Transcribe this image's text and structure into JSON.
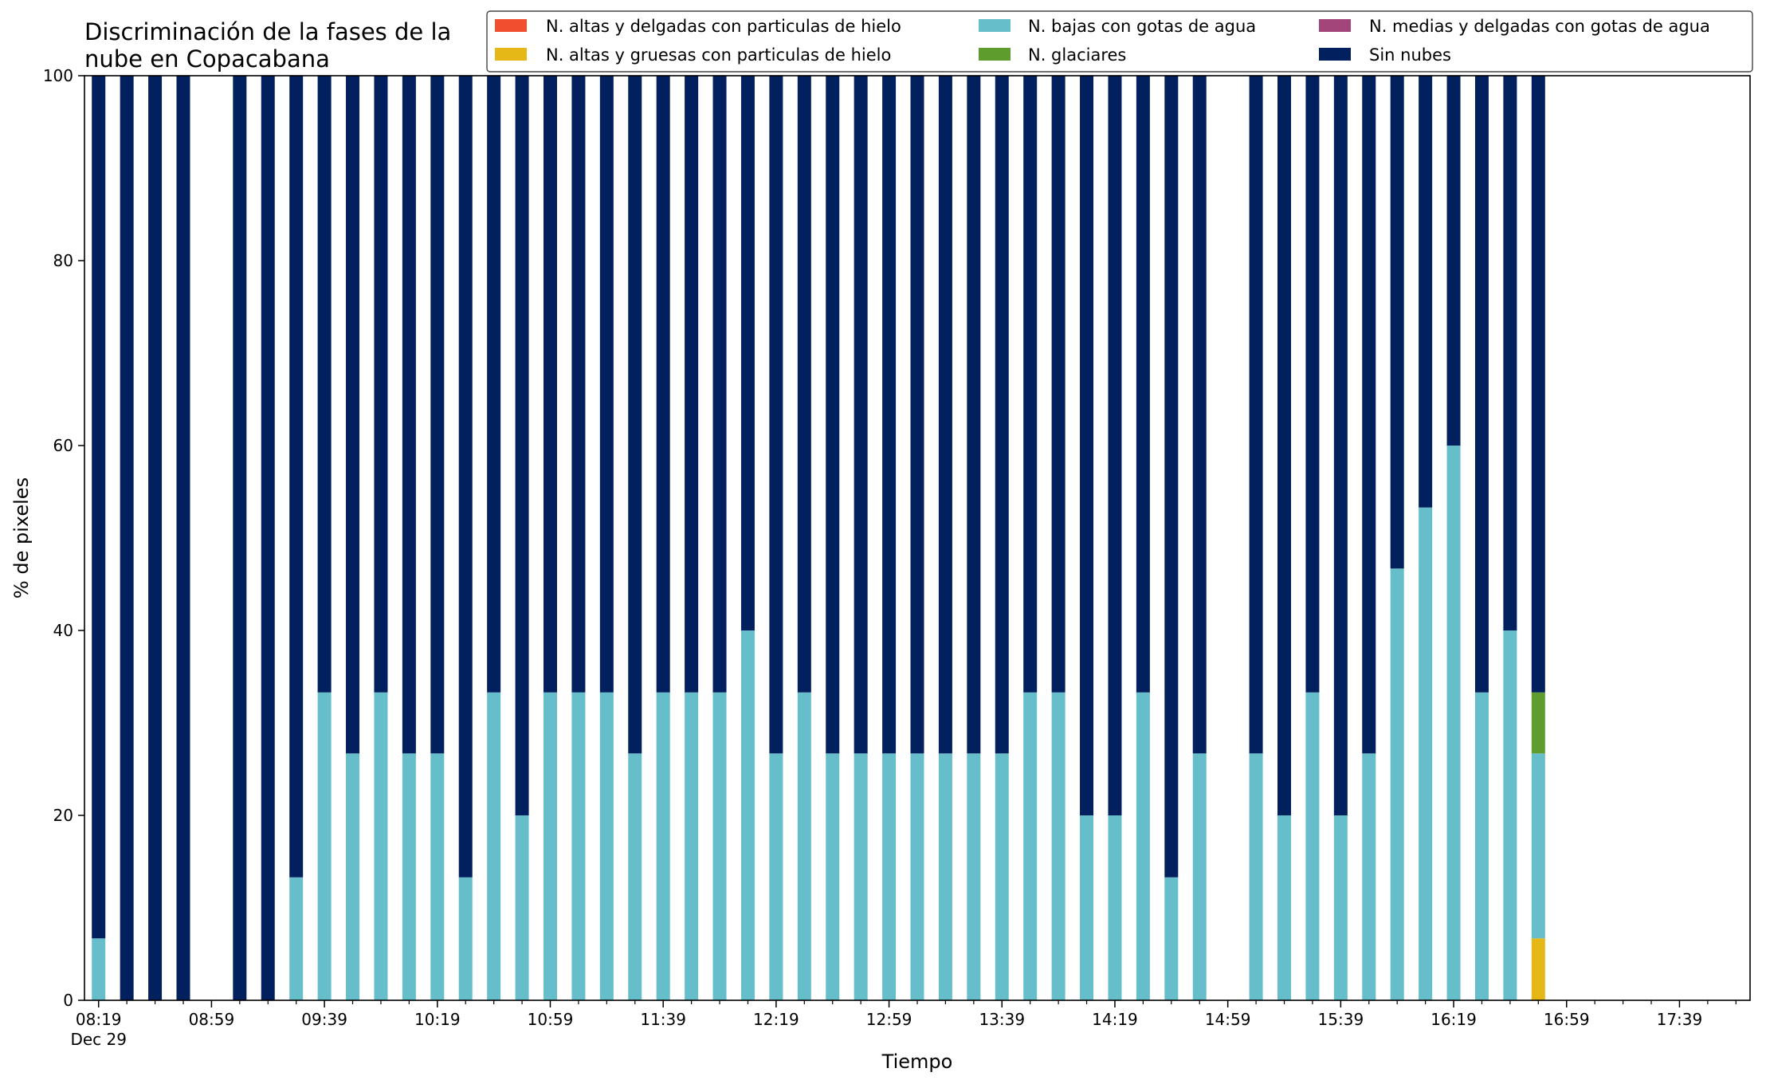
{
  "chart_data": {
    "type": "bar",
    "stacked": true,
    "title": [
      "Discriminación de la fases de la",
      "nube en Copacabana"
    ],
    "xlabel": "Tiempo",
    "ylabel": "% de pixeles",
    "ylim": [
      0,
      100
    ],
    "y_ticks": [
      0,
      20,
      40,
      60,
      80,
      100
    ],
    "x_range": [
      "08:14",
      "18:04"
    ],
    "x_tick_labels": [
      {
        "time": "08:19",
        "label": "08:19",
        "sublabel": "Dec 29"
      },
      {
        "time": "08:59",
        "label": "08:59"
      },
      {
        "time": "09:39",
        "label": "09:39"
      },
      {
        "time": "10:19",
        "label": "10:19"
      },
      {
        "time": "10:59",
        "label": "10:59"
      },
      {
        "time": "11:39",
        "label": "11:39"
      },
      {
        "time": "12:19",
        "label": "12:19"
      },
      {
        "time": "12:59",
        "label": "12:59"
      },
      {
        "time": "13:39",
        "label": "13:39"
      },
      {
        "time": "14:19",
        "label": "14:19"
      },
      {
        "time": "14:59",
        "label": "14:59"
      },
      {
        "time": "15:39",
        "label": "15:39"
      },
      {
        "time": "16:19",
        "label": "16:19"
      },
      {
        "time": "16:59",
        "label": "16:59"
      },
      {
        "time": "17:39",
        "label": "17:39"
      }
    ],
    "minor_tick_step_minutes": 10,
    "legend_placement": "top-right",
    "legend_columns": 3,
    "categories": [
      "08:19",
      "08:29",
      "08:39",
      "08:49",
      "09:09",
      "09:19",
      "09:29",
      "09:39",
      "09:49",
      "09:59",
      "10:09",
      "10:19",
      "10:29",
      "10:39",
      "10:49",
      "10:59",
      "11:09",
      "11:19",
      "11:29",
      "11:39",
      "11:49",
      "11:59",
      "12:09",
      "12:19",
      "12:29",
      "12:39",
      "12:49",
      "12:59",
      "13:09",
      "13:19",
      "13:29",
      "13:39",
      "13:49",
      "13:59",
      "14:09",
      "14:19",
      "14:29",
      "14:39",
      "14:49",
      "15:09",
      "15:19",
      "15:29",
      "15:39",
      "15:49",
      "15:59",
      "16:09",
      "16:19",
      "16:29",
      "16:39",
      "16:49"
    ],
    "series": [
      {
        "name": "N. altas y delgadas con particulas de hielo",
        "color": "#f04e2e",
        "values": [
          0,
          0,
          0,
          0,
          0,
          0,
          0,
          0,
          0,
          0,
          0,
          0,
          0,
          0,
          0,
          0,
          0,
          0,
          0,
          0,
          0,
          0,
          0,
          0,
          0,
          0,
          0,
          0,
          0,
          0,
          0,
          0,
          0,
          0,
          0,
          0,
          0,
          0,
          0,
          0,
          0,
          0,
          0,
          0,
          0,
          0,
          0,
          0,
          0,
          0
        ]
      },
      {
        "name": "N. altas y gruesas con particulas de hielo",
        "color": "#e6b817",
        "values": [
          0,
          0,
          0,
          0,
          0,
          0,
          0,
          0,
          0,
          0,
          0,
          0,
          0,
          0,
          0,
          0,
          0,
          0,
          0,
          0,
          0,
          0,
          0,
          0,
          0,
          0,
          0,
          0,
          0,
          0,
          0,
          0,
          0,
          0,
          0,
          0,
          0,
          0,
          0,
          0,
          0,
          0,
          0,
          0,
          0,
          0,
          0,
          0,
          0,
          6.7
        ]
      },
      {
        "name": "N. bajas con gotas de agua",
        "color": "#66becb",
        "values": [
          6.7,
          0,
          0,
          0,
          0,
          0,
          13.3,
          33.3,
          26.7,
          33.3,
          26.7,
          26.7,
          13.3,
          33.3,
          20,
          33.3,
          33.3,
          33.3,
          26.7,
          33.3,
          33.3,
          33.3,
          40,
          26.7,
          33.3,
          26.7,
          26.7,
          26.7,
          26.7,
          26.7,
          26.7,
          26.7,
          33.3,
          33.3,
          20,
          20,
          33.3,
          13.3,
          26.7,
          26.7,
          20,
          33.3,
          20,
          26.7,
          46.7,
          53.3,
          60,
          33.3,
          40,
          20
        ]
      },
      {
        "name": "N. glaciares",
        "color": "#5e9c2e",
        "values": [
          0,
          0,
          0,
          0,
          0,
          0,
          0,
          0,
          0,
          0,
          0,
          0,
          0,
          0,
          0,
          0,
          0,
          0,
          0,
          0,
          0,
          0,
          0,
          0,
          0,
          0,
          0,
          0,
          0,
          0,
          0,
          0,
          0,
          0,
          0,
          0,
          0,
          0,
          0,
          0,
          0,
          0,
          0,
          0,
          0,
          0,
          0,
          0,
          0,
          6.6
        ]
      },
      {
        "name": "N. medias y delgadas con gotas de agua",
        "color": "#a3447a",
        "values": [
          0,
          0,
          0,
          0,
          0,
          0,
          0,
          0,
          0,
          0,
          0,
          0,
          0,
          0,
          0,
          0,
          0,
          0,
          0,
          0,
          0,
          0,
          0,
          0,
          0,
          0,
          0,
          0,
          0,
          0,
          0,
          0,
          0,
          0,
          0,
          0,
          0,
          0,
          0,
          0,
          0,
          0,
          0,
          0,
          0,
          0,
          0,
          0,
          0,
          0
        ]
      },
      {
        "name": "Sin nubes",
        "color": "#021f5e",
        "values": [
          93.3,
          100,
          100,
          100,
          100,
          100,
          86.7,
          66.7,
          73.3,
          66.7,
          73.3,
          73.3,
          86.7,
          66.7,
          80,
          66.7,
          66.7,
          66.7,
          73.3,
          66.7,
          66.7,
          66.7,
          60,
          73.3,
          66.7,
          73.3,
          73.3,
          73.3,
          73.3,
          73.3,
          73.3,
          73.3,
          66.7,
          66.7,
          80,
          80,
          66.7,
          86.7,
          73.3,
          73.3,
          80,
          66.7,
          80,
          73.3,
          53.3,
          46.7,
          40,
          66.7,
          60,
          66.7
        ]
      }
    ]
  }
}
